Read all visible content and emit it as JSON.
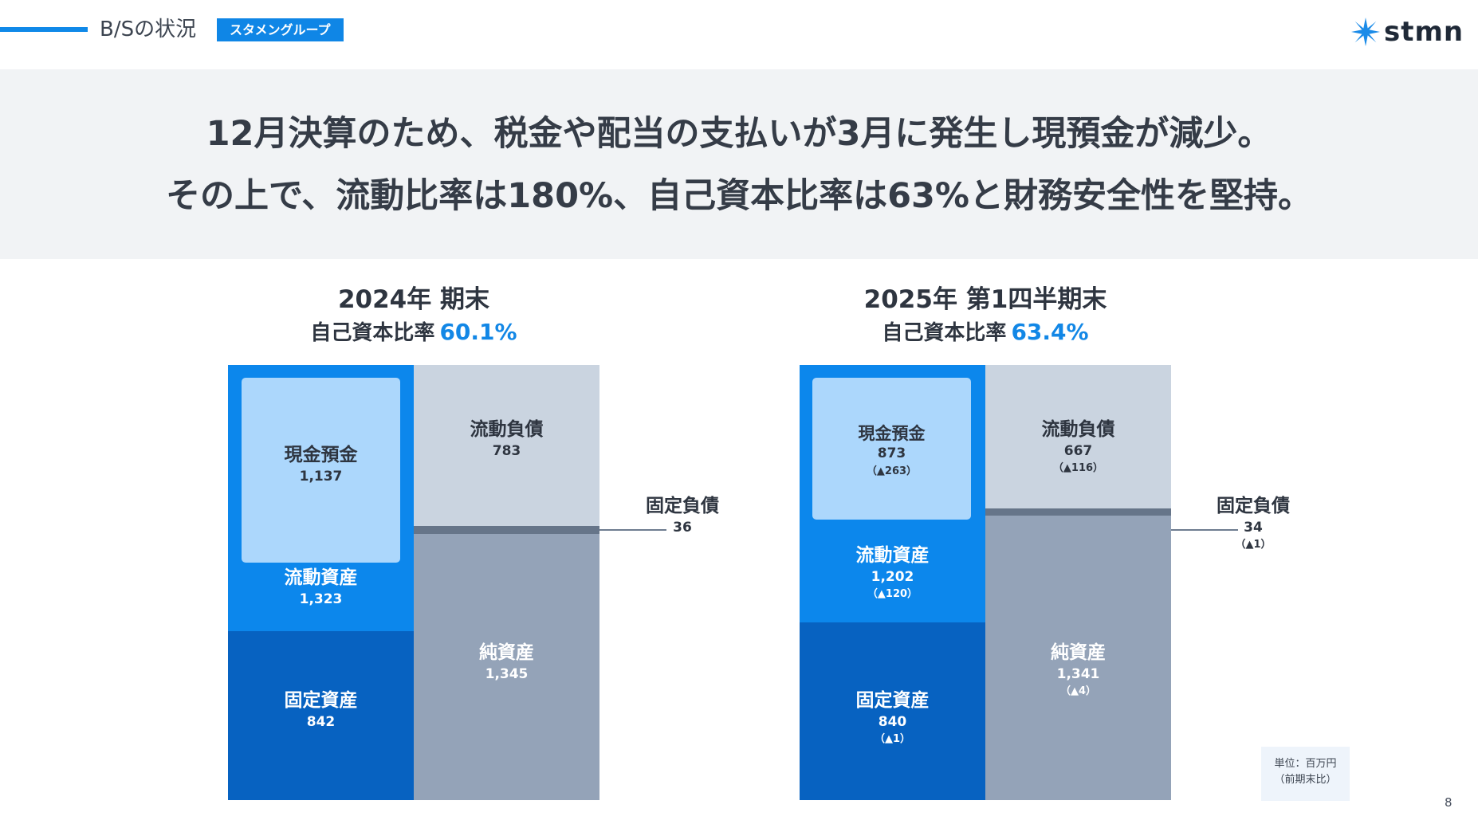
{
  "header": {
    "section_title": "B/Sの状況",
    "badge": "スタメングループ",
    "logo_text": "stmn",
    "logo_icon": "starburst-logo-icon",
    "accent_color": "#1089e8"
  },
  "banner": {
    "line1": "12月決算のため、税金や配当の支払いが3月に発生し現預金が減少。",
    "line2": "その上で、流動比率は180%、自己資本比率は63%と財務安全性を堅持。"
  },
  "left": {
    "title": "2024年 期末",
    "ratio_label": "自己資本比率",
    "ratio_value": "60.1%",
    "cash": {
      "name": "現金預金",
      "value": "1,137"
    },
    "current_assets": {
      "name": "流動資産",
      "value": "1,323"
    },
    "fixed_assets": {
      "name": "固定資産",
      "value": "842"
    },
    "current_liabilities": {
      "name": "流動負債",
      "value": "783"
    },
    "fixed_liabilities": {
      "name": "固定負債",
      "value": "36"
    },
    "net_assets": {
      "name": "純資産",
      "value": "1,345"
    }
  },
  "right": {
    "title": "2025年 第1四半期末",
    "ratio_label": "自己資本比率",
    "ratio_value": "63.4%",
    "cash": {
      "name": "現金預金",
      "value": "873",
      "delta": "（▲263）"
    },
    "current_assets": {
      "name": "流動資産",
      "value": "1,202",
      "delta": "（▲120）"
    },
    "fixed_assets": {
      "name": "固定資産",
      "value": "840",
      "delta": "（▲1）"
    },
    "current_liabilities": {
      "name": "流動負債",
      "value": "667",
      "delta": "（▲116）"
    },
    "fixed_liabilities": {
      "name": "固定負債",
      "value": "34",
      "delta": "（▲1）"
    },
    "net_assets": {
      "name": "純資産",
      "value": "1,341",
      "delta": "（▲4）"
    }
  },
  "unit_note": {
    "line1": "単位：百万円",
    "line2": "（前期末比）"
  },
  "page_number": "8"
}
